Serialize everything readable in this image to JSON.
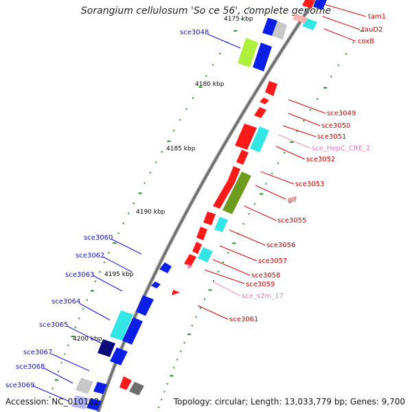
{
  "title": "Sorangium cellulosum 'So ce 56', complete genome",
  "footer": {
    "accession": "Accession: NC_010162",
    "topology": "Topology: circular; Length: 13,033,779 bp; Genes: 9,700"
  },
  "colors": {
    "red": "#ff1a1a",
    "blue": "#0a1fe6",
    "cyan": "#33e6e6",
    "navy": "#0a0a7a",
    "lime": "#aef03c",
    "olive": "#6e9a1e",
    "gray": "#6e6e6e",
    "silver": "#c8c8c8",
    "pink": "#f08cc0",
    "green": "#1a8c1a"
  },
  "scale_labels": [
    "4175 kbp",
    "4180 kbp",
    "4185 kbp",
    "4190 kbp",
    "4195 kbp",
    "4200 kbp"
  ],
  "gene_labels_right": [
    {
      "text": "tam1",
      "color": "#cc0000"
    },
    {
      "text": "tauD2",
      "color": "#cc0000"
    },
    {
      "text": "coxB",
      "color": "#cc0000"
    },
    {
      "text": "sce3049",
      "color": "#cc0000"
    },
    {
      "text": "sce3050",
      "color": "#cc0000"
    },
    {
      "text": "sce3051",
      "color": "#cc0000"
    },
    {
      "text": "sce_HepC_CRE_2",
      "color": "#e87ab8"
    },
    {
      "text": "sce3052",
      "color": "#cc0000"
    },
    {
      "text": "sce3053",
      "color": "#cc0000"
    },
    {
      "text": "glf",
      "color": "#cc0000"
    },
    {
      "text": "sce3055",
      "color": "#cc0000"
    },
    {
      "text": "sce3056",
      "color": "#cc0000"
    },
    {
      "text": "sce3057",
      "color": "#cc0000"
    },
    {
      "text": "sce3058",
      "color": "#cc0000"
    },
    {
      "text": "sce3059",
      "color": "#cc0000"
    },
    {
      "text": "sce_s2m_17",
      "color": "#e87ab8"
    },
    {
      "text": "sce3061",
      "color": "#cc0000"
    }
  ],
  "gene_labels_left": [
    {
      "text": "sce3048",
      "color": "#1010cc"
    },
    {
      "text": "sce3060",
      "color": "#1010cc"
    },
    {
      "text": "sce3062",
      "color": "#1010cc"
    },
    {
      "text": "sce3063",
      "color": "#1010cc"
    },
    {
      "text": "sce3064",
      "color": "#1010cc"
    },
    {
      "text": "sce3065",
      "color": "#1010cc"
    },
    {
      "text": "sce3067",
      "color": "#1010cc"
    },
    {
      "text": "sce3068",
      "color": "#1010cc"
    },
    {
      "text": "sce3069",
      "color": "#1010cc"
    }
  ]
}
